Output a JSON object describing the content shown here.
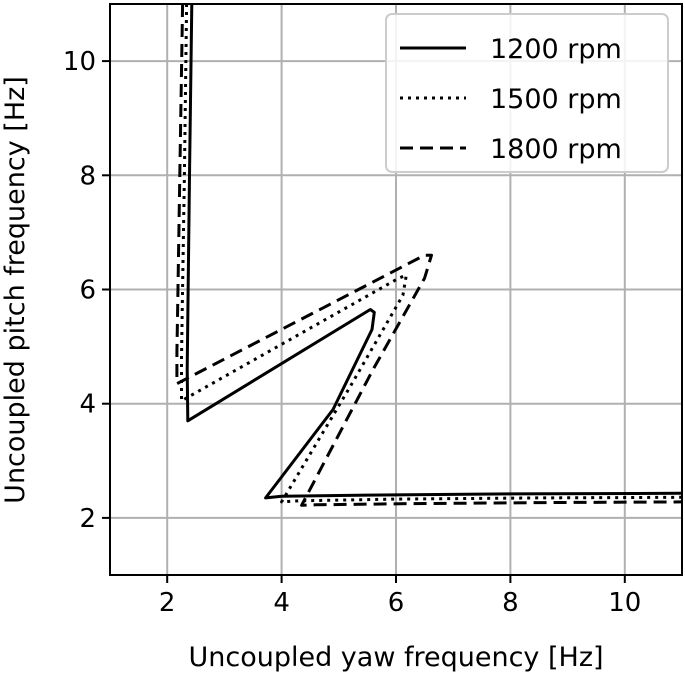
{
  "chart_data": {
    "type": "line",
    "xlabel": "Uncoupled yaw frequency [Hz]",
    "ylabel": "Uncoupled pitch frequency [Hz]",
    "xlim": [
      1,
      11
    ],
    "ylim": [
      1,
      11
    ],
    "xticks": [
      2,
      4,
      6,
      8,
      10
    ],
    "yticks": [
      2,
      4,
      6,
      8,
      10
    ],
    "grid": true,
    "legend_position": "top-right",
    "series": [
      {
        "name": "1200 rpm",
        "style": "solid",
        "x": [
          2.43,
          2.39,
          2.36,
          2.35,
          2.36,
          5.55,
          5.62,
          5.58,
          4.9,
          3.72,
          4.0,
          5.5,
          8.0,
          11.0
        ],
        "y": [
          11.0,
          8.0,
          5.5,
          4.6,
          3.7,
          5.65,
          5.6,
          5.3,
          3.9,
          2.35,
          2.38,
          2.4,
          2.42,
          2.43
        ]
      },
      {
        "name": "1500 rpm",
        "style": "dotted",
        "x": [
          2.34,
          2.3,
          2.26,
          2.25,
          2.25,
          6.05,
          6.18,
          6.12,
          5.2,
          4.0,
          4.3,
          6.0,
          8.5,
          11.0
        ],
        "y": [
          11.0,
          8.0,
          5.5,
          4.8,
          4.05,
          6.2,
          6.25,
          5.9,
          4.3,
          2.28,
          2.3,
          2.33,
          2.35,
          2.36
        ]
      },
      {
        "name": "1800 rpm",
        "style": "dashed",
        "x": [
          2.27,
          2.22,
          2.18,
          2.17,
          2.17,
          6.5,
          6.62,
          6.5,
          5.6,
          4.35,
          4.6,
          6.3,
          8.8,
          11.0
        ],
        "y": [
          11.0,
          8.0,
          5.5,
          4.9,
          4.35,
          6.6,
          6.6,
          6.2,
          4.6,
          2.22,
          2.23,
          2.25,
          2.27,
          2.28
        ]
      }
    ]
  }
}
